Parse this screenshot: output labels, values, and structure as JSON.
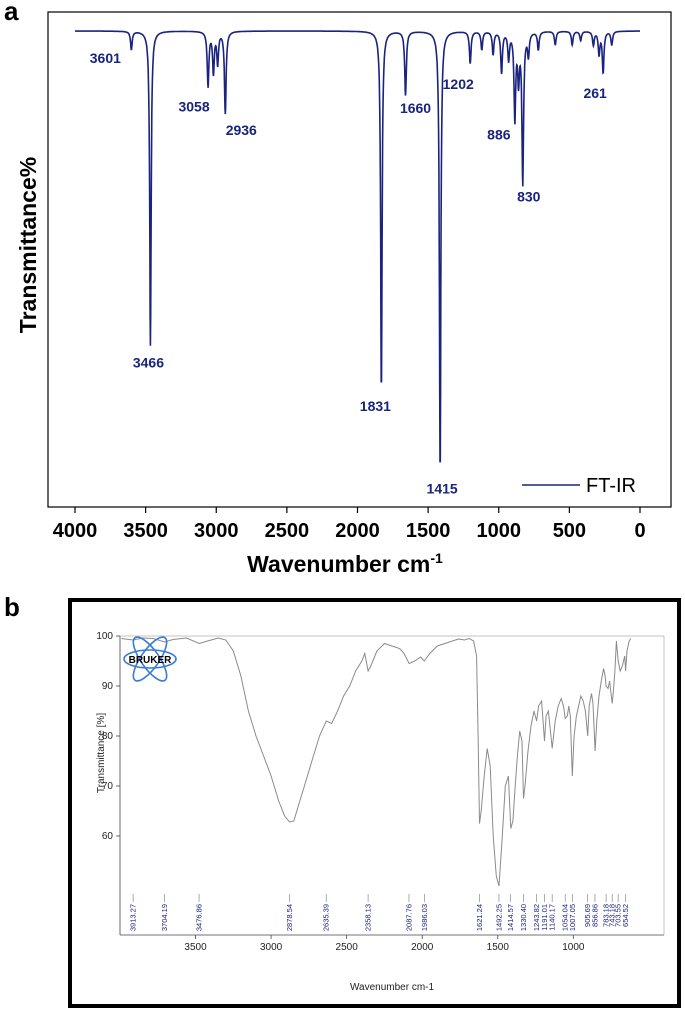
{
  "panels": {
    "a_label": "a",
    "b_label": "b"
  },
  "chart_data": [
    {
      "type": "line",
      "panel": "a",
      "title": "",
      "xlabel_main": "Wavenumber cm",
      "xlabel_sup": "-1",
      "ylabel": "Transmittance%",
      "xlim": [
        4000,
        0
      ],
      "x_reversed": true,
      "xticks": [
        4000,
        3500,
        3000,
        2500,
        2000,
        1500,
        1000,
        500,
        0
      ],
      "y_ticks_shown": false,
      "grid": false,
      "legend": {
        "placement": "bottom-right",
        "entries": [
          "FT-IR"
        ]
      },
      "series": [
        {
          "name": "FT-IR",
          "color": "#1a237e"
        }
      ],
      "baseline_transmittance": 100,
      "ylim": [
        0,
        100
      ],
      "peaks": [
        {
          "x": 3601,
          "depth": 4,
          "label": "3601"
        },
        {
          "x": 3466,
          "depth": 69,
          "label": "3466"
        },
        {
          "x": 3058,
          "depth": 12,
          "label": "3058"
        },
        {
          "x": 3020,
          "depth": 9,
          "label": ""
        },
        {
          "x": 2990,
          "depth": 7,
          "label": ""
        },
        {
          "x": 2936,
          "depth": 18,
          "label": "2936"
        },
        {
          "x": 1831,
          "depth": 79,
          "label": "1831"
        },
        {
          "x": 1660,
          "depth": 14,
          "label": "1660"
        },
        {
          "x": 1415,
          "depth": 97,
          "label": "1415"
        },
        {
          "x": 1202,
          "depth": 7,
          "label": "1202"
        },
        {
          "x": 1120,
          "depth": 4,
          "label": ""
        },
        {
          "x": 1040,
          "depth": 5,
          "label": ""
        },
        {
          "x": 980,
          "depth": 9,
          "label": ""
        },
        {
          "x": 930,
          "depth": 6,
          "label": ""
        },
        {
          "x": 886,
          "depth": 19,
          "label": "886"
        },
        {
          "x": 860,
          "depth": 10,
          "label": ""
        },
        {
          "x": 830,
          "depth": 33,
          "label": "830"
        },
        {
          "x": 790,
          "depth": 5,
          "label": ""
        },
        {
          "x": 720,
          "depth": 4,
          "label": ""
        },
        {
          "x": 600,
          "depth": 3,
          "label": ""
        },
        {
          "x": 480,
          "depth": 3,
          "label": ""
        },
        {
          "x": 420,
          "depth": 2,
          "label": ""
        },
        {
          "x": 330,
          "depth": 3,
          "label": ""
        },
        {
          "x": 290,
          "depth": 5,
          "label": ""
        },
        {
          "x": 261,
          "depth": 9,
          "label": "261"
        },
        {
          "x": 200,
          "depth": 3,
          "label": ""
        }
      ]
    },
    {
      "type": "line",
      "panel": "b",
      "title": "",
      "logo_text": "BRUKER",
      "xlabel": "Wavenumber cm-1",
      "ylabel": "Transmittance [%]",
      "xlim": [
        4000,
        400
      ],
      "x_reversed": true,
      "xticks": [
        3500,
        3000,
        2500,
        2000,
        1500,
        1000
      ],
      "ylim": [
        40,
        100
      ],
      "yticks": [
        60,
        70,
        80,
        90,
        100
      ],
      "grid": false,
      "series": [
        {
          "name": "",
          "color": "#8a8a8a"
        }
      ],
      "points": [
        [
          3990,
          99.5
        ],
        [
          3913,
          99.2
        ],
        [
          3850,
          99.6
        ],
        [
          3780,
          99.5
        ],
        [
          3704,
          98.8
        ],
        [
          3650,
          99.3
        ],
        [
          3560,
          99.6
        ],
        [
          3476,
          98.5
        ],
        [
          3420,
          99.0
        ],
        [
          3350,
          99.6
        ],
        [
          3300,
          99.2
        ],
        [
          3250,
          97
        ],
        [
          3200,
          92
        ],
        [
          3150,
          85
        ],
        [
          3100,
          80
        ],
        [
          3050,
          76
        ],
        [
          3000,
          72
        ],
        [
          2950,
          67
        ],
        [
          2910,
          64
        ],
        [
          2878,
          62.8
        ],
        [
          2850,
          63
        ],
        [
          2820,
          66
        ],
        [
          2780,
          70
        ],
        [
          2720,
          76
        ],
        [
          2680,
          80
        ],
        [
          2635,
          83
        ],
        [
          2600,
          82.5
        ],
        [
          2560,
          85
        ],
        [
          2520,
          88
        ],
        [
          2480,
          90
        ],
        [
          2440,
          93
        ],
        [
          2400,
          95
        ],
        [
          2380,
          96.5
        ],
        [
          2358,
          93
        ],
        [
          2340,
          94
        ],
        [
          2300,
          97
        ],
        [
          2250,
          98.5
        ],
        [
          2200,
          98
        ],
        [
          2150,
          97.5
        ],
        [
          2120,
          96.5
        ],
        [
          2087,
          94.5
        ],
        [
          2050,
          95
        ],
        [
          2010,
          95.8
        ],
        [
          1986,
          95
        ],
        [
          1950,
          96.5
        ],
        [
          1900,
          98
        ],
        [
          1850,
          98.5
        ],
        [
          1800,
          99
        ],
        [
          1760,
          99.4
        ],
        [
          1720,
          99.2
        ],
        [
          1690,
          99.5
        ],
        [
          1660,
          99
        ],
        [
          1640,
          96
        ],
        [
          1630,
          80
        ],
        [
          1621,
          62.5
        ],
        [
          1610,
          65
        ],
        [
          1590,
          72
        ],
        [
          1570,
          77.5
        ],
        [
          1550,
          74
        ],
        [
          1530,
          60
        ],
        [
          1510,
          52
        ],
        [
          1492,
          50
        ],
        [
          1470,
          60
        ],
        [
          1450,
          70
        ],
        [
          1430,
          72
        ],
        [
          1414,
          61.5
        ],
        [
          1400,
          63
        ],
        [
          1385,
          70
        ],
        [
          1370,
          76
        ],
        [
          1355,
          81
        ],
        [
          1340,
          79
        ],
        [
          1330,
          67.5
        ],
        [
          1320,
          70
        ],
        [
          1300,
          77
        ],
        [
          1280,
          82
        ],
        [
          1260,
          85
        ],
        [
          1243,
          83
        ],
        [
          1230,
          86
        ],
        [
          1210,
          87
        ],
        [
          1191,
          79
        ],
        [
          1180,
          84
        ],
        [
          1165,
          85
        ],
        [
          1140,
          77.5
        ],
        [
          1120,
          83
        ],
        [
          1100,
          86
        ],
        [
          1080,
          87.5
        ],
        [
          1065,
          86
        ],
        [
          1054,
          83.5
        ],
        [
          1040,
          84
        ],
        [
          1030,
          86
        ],
        [
          1020,
          84
        ],
        [
          1007,
          72
        ],
        [
          995,
          80
        ],
        [
          980,
          84
        ],
        [
          965,
          86
        ],
        [
          950,
          88
        ],
        [
          935,
          87
        ],
        [
          920,
          85
        ],
        [
          905,
          80
        ],
        [
          895,
          86
        ],
        [
          880,
          88.5
        ],
        [
          870,
          86.5
        ],
        [
          856,
          77
        ],
        [
          845,
          83
        ],
        [
          830,
          88
        ],
        [
          815,
          91
        ],
        [
          800,
          93.5
        ],
        [
          790,
          92
        ],
        [
          783,
          90
        ],
        [
          770,
          89.5
        ],
        [
          760,
          91
        ],
        [
          743,
          86.5
        ],
        [
          735,
          89
        ],
        [
          725,
          93
        ],
        [
          715,
          99
        ],
        [
          703,
          95
        ],
        [
          690,
          93
        ],
        [
          675,
          94
        ],
        [
          660,
          96
        ],
        [
          654,
          93
        ],
        [
          645,
          97
        ],
        [
          630,
          99
        ],
        [
          620,
          99.5
        ]
      ],
      "peak_labels": [
        "3913.27",
        "3704.19",
        "3476.86",
        "2878.54",
        "2635.39",
        "2358.13",
        "2087.76",
        "1986.03",
        "1621.24",
        "1492.25",
        "1414.57",
        "1330.40",
        "1243.82",
        "1191.01",
        "1140.17",
        "1054.04",
        "1007.05",
        "905.69",
        "856.86",
        "783.18",
        "743.18",
        "703.55",
        "654.52"
      ]
    }
  ]
}
